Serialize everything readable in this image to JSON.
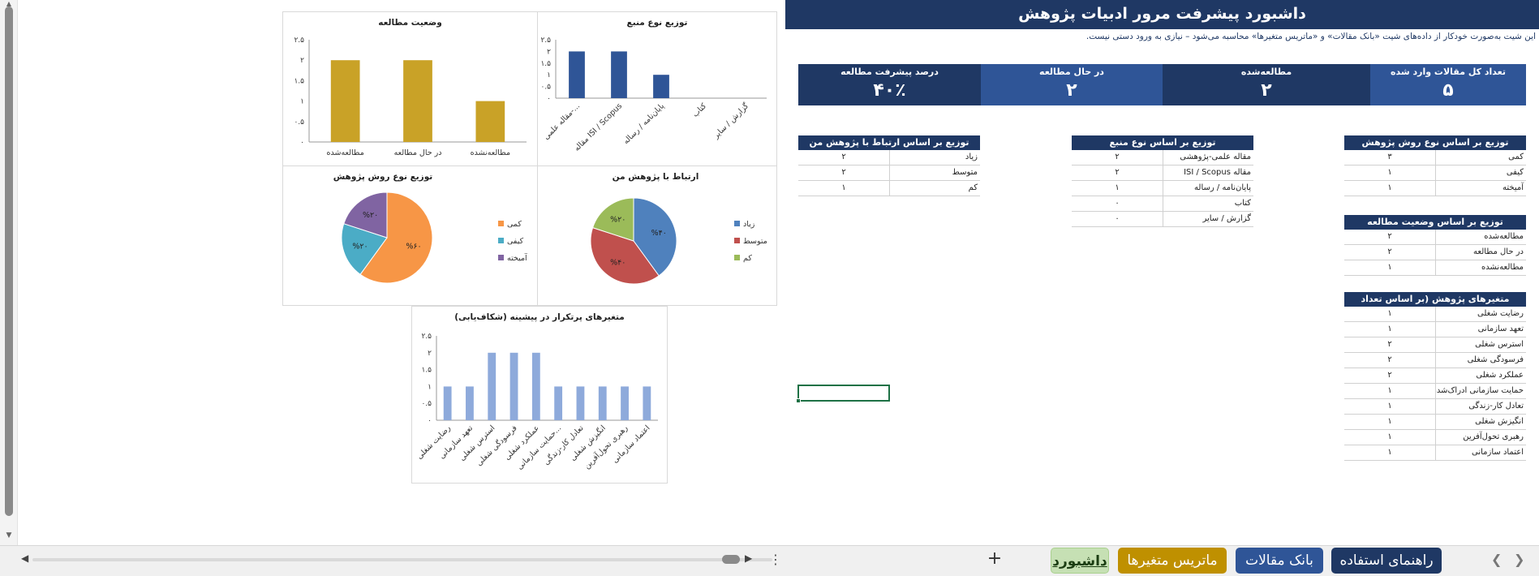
{
  "header": {
    "title": "داشبورد پیشرفت مرور ادبیات پژوهش",
    "subtitle": "این شیت به‌صورت خودکار از داده‌های شیت «بانک مقالات» و «ماتریس متغیرها» محاسبه می‌شود – نیازی به ورود دستی نیست."
  },
  "kpis": [
    {
      "label": "تعداد کل مقالات وارد شده",
      "value": "۵",
      "color": "#2f5597"
    },
    {
      "label": "مطالعه‌شده",
      "value": "۲",
      "color": "#1f3864"
    },
    {
      "label": "در حال مطالعه",
      "value": "۲",
      "color": "#2f5597"
    },
    {
      "label": "درصد پیشرفت مطالعه",
      "value": "۴۰٪",
      "color": "#1f3864"
    }
  ],
  "tables": {
    "method": {
      "title": "توزیع بر اساس نوع روش پژوهش",
      "rows": [
        {
          "k": "کمی",
          "v": "۳"
        },
        {
          "k": "کیفی",
          "v": "۱"
        },
        {
          "k": "آمیخته",
          "v": "۱"
        }
      ]
    },
    "status": {
      "title": "توزیع بر اساس وضعیت مطالعه",
      "rows": [
        {
          "k": "مطالعه‌شده",
          "v": "۲"
        },
        {
          "k": "در حال مطالعه",
          "v": "۲"
        },
        {
          "k": "مطالعه‌نشده",
          "v": "۱"
        }
      ]
    },
    "variables": {
      "title": "متغیرهای پژوهش (بر اساس تعداد مقالات)",
      "rows": [
        {
          "k": "رضایت شغلی",
          "v": "۱"
        },
        {
          "k": "تعهد سازمانی",
          "v": "۱"
        },
        {
          "k": "استرس شغلی",
          "v": "۲"
        },
        {
          "k": "فرسودگی شغلی",
          "v": "۲"
        },
        {
          "k": "عملکرد شغلی",
          "v": "۲"
        },
        {
          "k": "حمایت سازمانی ادراک‌شده",
          "v": "۱"
        },
        {
          "k": "تعادل کار-زندگی",
          "v": "۱"
        },
        {
          "k": "انگیزش شغلی",
          "v": "۱"
        },
        {
          "k": "رهبری تحول‌آفرین",
          "v": "۱"
        },
        {
          "k": "اعتماد سازمانی",
          "v": "۱"
        }
      ]
    },
    "source": {
      "title": "توزیع بر اساس نوع منبع",
      "rows": [
        {
          "k": "مقاله علمی-پژوهشی",
          "v": "۲"
        },
        {
          "k": "مقاله ISI / Scopus",
          "v": "۲"
        },
        {
          "k": "پایان‌نامه / رساله",
          "v": "۱"
        },
        {
          "k": "کتاب",
          "v": "۰"
        },
        {
          "k": "گزارش / سایر",
          "v": "۰"
        }
      ]
    },
    "relevance": {
      "title": "توزیع بر اساس ارتباط با پژوهش من",
      "rows": [
        {
          "k": "زیاد",
          "v": "۲"
        },
        {
          "k": "متوسط",
          "v": "۲"
        },
        {
          "k": "کم",
          "v": "۱"
        }
      ]
    }
  },
  "chart_data": [
    {
      "id": "status",
      "type": "bar",
      "title": "وضعیت مطالعه",
      "categories": [
        "مطالعه‌شده",
        "در حال مطالعه",
        "مطالعه‌نشده"
      ],
      "values": [
        2,
        2,
        1
      ],
      "ylim": [
        0,
        2.5
      ],
      "yticks": [
        "۰",
        "۰.۵",
        "۱",
        "۱.۵",
        "۲",
        "۲.۵"
      ],
      "color": "#c9a227"
    },
    {
      "id": "source",
      "type": "bar",
      "title": "توزیع نوع منبع",
      "categories": [
        "مقاله علمی-...",
        "مقاله ISI / Scopus",
        "پایان‌نامه / رساله",
        "کتاب",
        "گزارش / سایر"
      ],
      "values": [
        2,
        2,
        1,
        0,
        0
      ],
      "ylim": [
        0,
        2.5
      ],
      "yticks": [
        "۰",
        "۰.۵",
        "۱",
        "۱.۵",
        "۲",
        "۲.۵"
      ],
      "color": "#2f5597"
    },
    {
      "id": "method",
      "type": "pie",
      "title": "توزیع نوع روش پژوهش",
      "labels": [
        "کمی",
        "کیفی",
        "آمیخته"
      ],
      "values": [
        60,
        20,
        20
      ],
      "pct_labels": [
        "%۶۰",
        "%۲۰",
        "%۲۰"
      ],
      "colors": [
        "#f79646",
        "#4bacc6",
        "#8064a2"
      ]
    },
    {
      "id": "relevance",
      "type": "pie",
      "title": "ارتباط با پژوهش من",
      "labels": [
        "زیاد",
        "متوسط",
        "کم"
      ],
      "values": [
        40,
        40,
        20
      ],
      "pct_labels": [
        "%۴۰",
        "%۴۰",
        "%۲۰"
      ],
      "colors": [
        "#4f81bd",
        "#c0504d",
        "#9bbb59"
      ]
    },
    {
      "id": "variables",
      "type": "bar",
      "title": "متغیرهای پرتکرار در پیشینه (شکاف‌یابی)",
      "categories": [
        "رضایت شغلی",
        "تعهد سازمانی",
        "استرس شغلی",
        "فرسودگی شغلی",
        "عملکرد شغلی",
        "حمایت سازمانی...",
        "تعادل کار-زندگی",
        "انگیزش شغلی",
        "رهبری تحول‌آفرین",
        "اعتماد سازمانی"
      ],
      "values": [
        1,
        1,
        2,
        2,
        2,
        1,
        1,
        1,
        1,
        1
      ],
      "ylim": [
        0,
        2.5
      ],
      "yticks": [
        "۰",
        "۰.۵",
        "۱",
        "۱.۵",
        "۲",
        "۲.۵"
      ],
      "color": "#8eaadb"
    }
  ],
  "tabs": [
    {
      "label": "راهنمای استفاده",
      "color": "#1f3864",
      "active": false
    },
    {
      "label": "بانک مقالات",
      "color": "#2f5597",
      "active": false
    },
    {
      "label": "ماتریس متغیرها",
      "color": "#bf9000",
      "active": false
    },
    {
      "label": "داشبورد",
      "color": "#c6e0b4",
      "active": true
    }
  ]
}
